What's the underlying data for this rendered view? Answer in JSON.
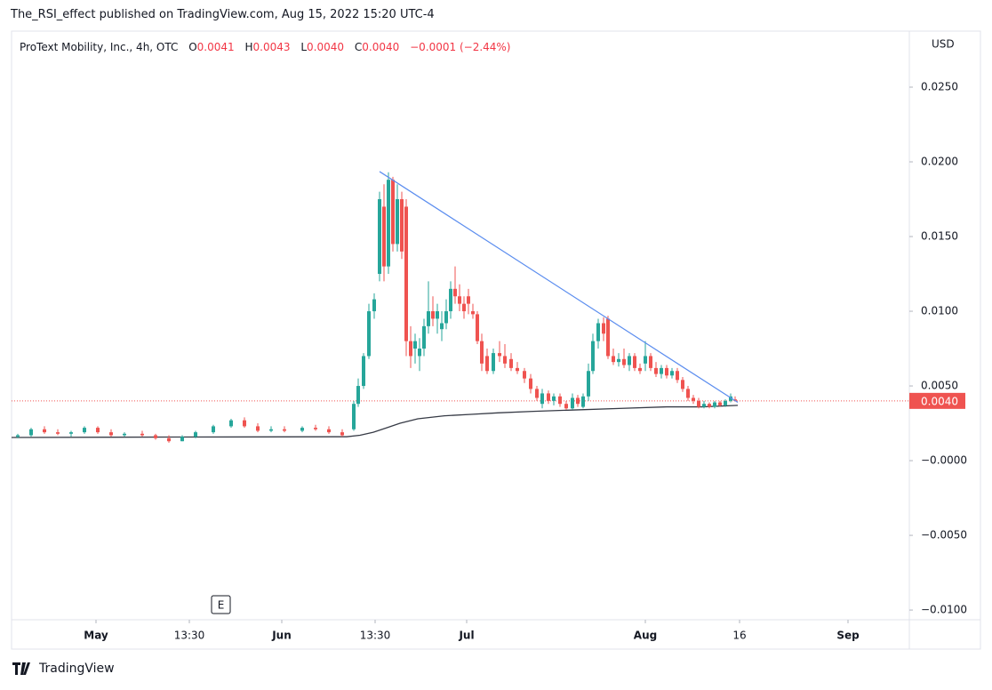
{
  "header": "The_RSI_effect published on TradingView.com, Aug 15, 2022 15:20 UTC-4",
  "legend": {
    "symbol": "ProText Mobility, Inc., 4h, OTC",
    "o_label": "O",
    "open": "0.0041",
    "h_label": "H",
    "high": "0.0043",
    "l_label": "L",
    "low": "0.0040",
    "c_label": "C",
    "close": "0.0040",
    "change": "−0.0001 (−2.44%)"
  },
  "footer": "TradingView",
  "chart_data": {
    "type": "candlestick",
    "currency": "USD",
    "event_marker": "E",
    "up_color": "#26a69a",
    "down_color": "#ef5350",
    "x": [
      20,
      35,
      50,
      65,
      80,
      95,
      110,
      125,
      140,
      160,
      175,
      190,
      205,
      220,
      240,
      260,
      275,
      290,
      305,
      320,
      340,
      355,
      370,
      385,
      398,
      403,
      409,
      415,
      421,
      427,
      432,
      437,
      442,
      447,
      452,
      457,
      462,
      467,
      472,
      477,
      482,
      487,
      492,
      497,
      502,
      507,
      512,
      517,
      522,
      527,
      532,
      537,
      542,
      548,
      555,
      562,
      568,
      575,
      582,
      590,
      597,
      604,
      610,
      617,
      623,
      630,
      637,
      644,
      650,
      656,
      662,
      667,
      673,
      679,
      684,
      690,
      696,
      702,
      708,
      714,
      720,
      726,
      732,
      738,
      744,
      750,
      756,
      762,
      768,
      774,
      780,
      786,
      792,
      798,
      804,
      810,
      816,
      822,
      827
    ],
    "open": [
      0.0016,
      0.0017,
      0.0021,
      0.0019,
      0.0018,
      0.0019,
      0.0022,
      0.0019,
      0.0017,
      0.0018,
      0.0017,
      0.0015,
      0.0013,
      0.0016,
      0.0019,
      0.0023,
      0.0027,
      0.0023,
      0.002,
      0.0021,
      0.002,
      0.0022,
      0.0021,
      0.0019,
      0.0021,
      0.0038,
      0.005,
      0.007,
      0.01,
      0.0125,
      0.017,
      0.013,
      0.0188,
      0.0145,
      0.0175,
      0.017,
      0.008,
      0.0075,
      0.007,
      0.0075,
      0.009,
      0.01,
      0.0095,
      0.0088,
      0.0092,
      0.01,
      0.0115,
      0.011,
      0.0105,
      0.011,
      0.01,
      0.0098,
      0.008,
      0.007,
      0.006,
      0.0072,
      0.007,
      0.0068,
      0.0062,
      0.006,
      0.0055,
      0.0048,
      0.0038,
      0.0045,
      0.004,
      0.0043,
      0.0038,
      0.0035,
      0.0042,
      0.0036,
      0.0043,
      0.006,
      0.008,
      0.0092,
      0.0095,
      0.007,
      0.0066,
      0.0068,
      0.0064,
      0.007,
      0.0062,
      0.0065,
      0.007,
      0.0062,
      0.0058,
      0.0062,
      0.0057,
      0.006,
      0.0054,
      0.0048,
      0.0042,
      0.004,
      0.0036,
      0.0038,
      0.0036,
      0.0039,
      0.0037,
      0.004,
      0.0041
    ],
    "high": [
      0.0018,
      0.0022,
      0.0023,
      0.0021,
      0.002,
      0.0023,
      0.0023,
      0.0021,
      0.0019,
      0.002,
      0.0018,
      0.0017,
      0.0017,
      0.002,
      0.0024,
      0.0028,
      0.0029,
      0.0025,
      0.0023,
      0.0023,
      0.0023,
      0.0024,
      0.0023,
      0.0021,
      0.004,
      0.0055,
      0.0072,
      0.0105,
      0.0112,
      0.018,
      0.0185,
      0.0193,
      0.019,
      0.0185,
      0.018,
      0.0175,
      0.009,
      0.0085,
      0.0082,
      0.0095,
      0.012,
      0.011,
      0.0105,
      0.01,
      0.0108,
      0.012,
      0.013,
      0.0118,
      0.011,
      0.0115,
      0.0105,
      0.01,
      0.0085,
      0.0075,
      0.0075,
      0.008,
      0.0078,
      0.0072,
      0.0066,
      0.0062,
      0.0058,
      0.005,
      0.0048,
      0.0047,
      0.0045,
      0.0045,
      0.004,
      0.0045,
      0.0044,
      0.0045,
      0.0065,
      0.0085,
      0.0095,
      0.0096,
      0.0097,
      0.0075,
      0.0072,
      0.0075,
      0.0072,
      0.0072,
      0.0065,
      0.008,
      0.0072,
      0.0066,
      0.0064,
      0.0064,
      0.0062,
      0.0062,
      0.0056,
      0.005,
      0.0044,
      0.0042,
      0.004,
      0.0039,
      0.004,
      0.004,
      0.0041,
      0.0045,
      0.0043
    ],
    "low": [
      0.0015,
      0.0016,
      0.0018,
      0.0017,
      0.0016,
      0.0018,
      0.0018,
      0.0016,
      0.0016,
      0.0016,
      0.0014,
      0.0012,
      0.0013,
      0.0015,
      0.0018,
      0.0022,
      0.0022,
      0.0019,
      0.0019,
      0.0019,
      0.0019,
      0.002,
      0.0018,
      0.0016,
      0.002,
      0.0036,
      0.0048,
      0.0068,
      0.0095,
      0.012,
      0.012,
      0.0125,
      0.014,
      0.014,
      0.0135,
      0.007,
      0.0062,
      0.0065,
      0.006,
      0.007,
      0.0085,
      0.009,
      0.0085,
      0.008,
      0.0088,
      0.0095,
      0.0105,
      0.01,
      0.0095,
      0.0098,
      0.0095,
      0.0078,
      0.006,
      0.0058,
      0.0058,
      0.0066,
      0.0062,
      0.006,
      0.0058,
      0.0052,
      0.0045,
      0.004,
      0.0035,
      0.0038,
      0.0037,
      0.0036,
      0.0034,
      0.0034,
      0.0036,
      0.0035,
      0.004,
      0.0058,
      0.0075,
      0.008,
      0.0068,
      0.0064,
      0.0063,
      0.0062,
      0.006,
      0.006,
      0.0058,
      0.006,
      0.006,
      0.0056,
      0.0055,
      0.0055,
      0.0055,
      0.0052,
      0.0046,
      0.004,
      0.0038,
      0.0035,
      0.0035,
      0.0035,
      0.0035,
      0.0036,
      0.0036,
      0.0039,
      0.004
    ],
    "close": [
      0.0017,
      0.0021,
      0.0019,
      0.0018,
      0.0019,
      0.0022,
      0.0019,
      0.0017,
      0.0018,
      0.0017,
      0.0015,
      0.0013,
      0.0016,
      0.0019,
      0.0023,
      0.0027,
      0.0023,
      0.002,
      0.0021,
      0.002,
      0.0022,
      0.0021,
      0.0019,
      0.0017,
      0.0038,
      0.005,
      0.007,
      0.01,
      0.0108,
      0.0175,
      0.013,
      0.0188,
      0.0145,
      0.0175,
      0.014,
      0.008,
      0.007,
      0.008,
      0.0075,
      0.009,
      0.01,
      0.0095,
      0.01,
      0.0092,
      0.01,
      0.0115,
      0.011,
      0.0105,
      0.01,
      0.0105,
      0.0098,
      0.008,
      0.0065,
      0.006,
      0.0072,
      0.007,
      0.0065,
      0.0062,
      0.006,
      0.0055,
      0.0048,
      0.0042,
      0.0045,
      0.004,
      0.0043,
      0.0038,
      0.0035,
      0.0042,
      0.0038,
      0.0043,
      0.006,
      0.008,
      0.0092,
      0.0085,
      0.007,
      0.0066,
      0.0068,
      0.0064,
      0.007,
      0.0062,
      0.006,
      0.007,
      0.0062,
      0.0058,
      0.0062,
      0.0057,
      0.006,
      0.0054,
      0.0048,
      0.0042,
      0.004,
      0.0036,
      0.0038,
      0.0036,
      0.0039,
      0.0037,
      0.004,
      0.0043,
      0.004
    ],
    "moving_average": {
      "color": "#363a45",
      "x": [
        13,
        200,
        390,
        405,
        420,
        435,
        450,
        470,
        500,
        530,
        560,
        600,
        650,
        700,
        750,
        790,
        830
      ],
      "values": [
        0.00155,
        0.00158,
        0.0016,
        0.0017,
        0.0019,
        0.0022,
        0.0025,
        0.0028,
        0.003,
        0.0031,
        0.0032,
        0.0033,
        0.0034,
        0.0035,
        0.0036,
        0.0036,
        0.0037
      ]
    },
    "trendline": {
      "color": "#5b8def",
      "x": [
        427,
        830
      ],
      "values": [
        0.01935,
        0.0039
      ]
    },
    "last_price": {
      "value": 0.004,
      "label": "0.0040"
    },
    "xlim": [
      13,
      1023
    ],
    "ylim": [
      -0.01065,
      0.02875
    ],
    "xticks": [
      {
        "value": 108,
        "label": "May"
      },
      {
        "value": 213,
        "label": "13:30"
      },
      {
        "value": 317,
        "label": "Jun"
      },
      {
        "value": 422,
        "label": "13:30"
      },
      {
        "value": 525,
        "label": "Jul"
      },
      {
        "value": 726,
        "label": "Aug"
      },
      {
        "value": 832,
        "label": "16"
      },
      {
        "value": 954,
        "label": "Sep"
      }
    ],
    "yticks": [
      {
        "value": 0.025,
        "label": "0.0250"
      },
      {
        "value": 0.02,
        "label": "0.0200"
      },
      {
        "value": 0.015,
        "label": "0.0150"
      },
      {
        "value": 0.01,
        "label": "0.0100"
      },
      {
        "value": 0.005,
        "label": "0.0050"
      },
      {
        "value": 0,
        "label": "−0.0000"
      },
      {
        "value": -0.005,
        "label": "−0.0050"
      },
      {
        "value": -0.01,
        "label": "−0.0100"
      }
    ]
  }
}
